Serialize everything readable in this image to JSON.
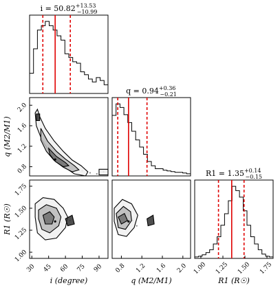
{
  "chart_data": {
    "type": "corner",
    "parameters": [
      {
        "key": "i",
        "title": {
          "lhs": "i = 50.82",
          "sup": "+13.53",
          "sub": "−10.99"
        },
        "median": 50.82,
        "lower": 39.83,
        "upper": 64.35,
        "range": [
          28,
          98
        ],
        "ticks": [
          30,
          45,
          60,
          75,
          90
        ],
        "tick_labels": [
          "30",
          "45",
          "60",
          "75",
          "90"
        ],
        "axis_label": "i (degree)",
        "histogram": [
          0.28,
          0.62,
          0.88,
          0.94,
          1.0,
          0.94,
          0.88,
          0.8,
          0.74,
          0.55,
          0.5,
          0.44,
          0.42,
          0.3,
          0.26,
          0.2,
          0.16,
          0.22,
          0.18,
          0.12
        ]
      },
      {
        "key": "q",
        "title": {
          "lhs": "q = 0.94",
          "sup": "+0.36",
          "sub": "−0.21"
        },
        "median": 0.94,
        "lower": 0.73,
        "upper": 1.3,
        "range": [
          0.62,
          2.15
        ],
        "ticks": [
          0.8,
          1.2,
          1.6,
          2.0
        ],
        "tick_labels": [
          "0.8",
          "1.2",
          "1.6",
          "2.0"
        ],
        "axis_label": "q (M2/M1)",
        "histogram": [
          0.84,
          1.0,
          0.95,
          0.85,
          0.74,
          0.62,
          0.5,
          0.4,
          0.3,
          0.2,
          0.14,
          0.1,
          0.1,
          0.08,
          0.07,
          0.06,
          0.05,
          0.05,
          0.04,
          0.03
        ]
      },
      {
        "key": "R1",
        "title": {
          "lhs": "R1 = 1.35",
          "sup": "+0.14",
          "sub": "−0.15"
        },
        "median": 1.35,
        "lower": 1.2,
        "upper": 1.49,
        "range": [
          0.93,
          1.82
        ],
        "ticks": [
          1.0,
          1.25,
          1.5,
          1.75
        ],
        "tick_labels": [
          "1.00",
          "1.25",
          "1.50",
          "1.75"
        ],
        "axis_label": "R1 (R☉)",
        "histogram": [
          0.02,
          0.03,
          0.05,
          0.08,
          0.12,
          0.2,
          0.3,
          0.46,
          0.62,
          0.8,
          1.0,
          0.94,
          0.85,
          0.66,
          0.46,
          0.3,
          0.2,
          0.12,
          0.06,
          0.03,
          0.02
        ]
      }
    ],
    "pairs": [
      {
        "x": "i",
        "y": "q",
        "contours": [
          [
            [
              35,
              1.92
            ],
            [
              37,
              1.78
            ],
            [
              42,
              1.55
            ],
            [
              50,
              1.3
            ],
            [
              58,
              1.1
            ],
            [
              66,
              0.93
            ],
            [
              74,
              0.82
            ],
            [
              80,
              0.7
            ],
            [
              78,
              0.62
            ],
            [
              68,
              0.66
            ],
            [
              60,
              0.78
            ],
            [
              52,
              0.93
            ],
            [
              45,
              1.12
            ],
            [
              39,
              1.32
            ],
            [
              34,
              1.6
            ],
            [
              33,
              1.85
            ]
          ],
          [
            [
              38,
              1.55
            ],
            [
              44,
              1.3
            ],
            [
              52,
              1.1
            ],
            [
              60,
              0.95
            ],
            [
              68,
              0.82
            ],
            [
              72,
              0.74
            ],
            [
              66,
              0.7
            ],
            [
              58,
              0.79
            ],
            [
              50,
              0.92
            ],
            [
              43,
              1.1
            ],
            [
              38,
              1.32
            ]
          ],
          [
            [
              45,
              1.16
            ],
            [
              52,
              1.0
            ],
            [
              60,
              0.88
            ],
            [
              63,
              0.82
            ],
            [
              58,
              0.8
            ],
            [
              51,
              0.9
            ],
            [
              46,
              1.04
            ]
          ],
          [
            [
              34,
              1.83
            ],
            [
              37,
              1.83
            ],
            [
              37,
              1.7
            ],
            [
              34,
              1.7
            ]
          ],
          [
            [
              90,
              0.75
            ],
            [
              98,
              0.75
            ],
            [
              98,
              0.64
            ],
            [
              90,
              0.64
            ]
          ]
        ],
        "points": [
          [
            37,
            1.75
          ],
          [
            40,
            1.5
          ],
          [
            43,
            1.35
          ],
          [
            47,
            1.2
          ],
          [
            50,
            1.1
          ],
          [
            53,
            1.02
          ],
          [
            56,
            0.96
          ],
          [
            59,
            0.9
          ],
          [
            62,
            0.86
          ],
          [
            66,
            0.8
          ],
          [
            70,
            0.75
          ],
          [
            75,
            0.72
          ],
          [
            82,
            0.68
          ],
          [
            88,
            0.66
          ],
          [
            94,
            0.7
          ]
        ]
      },
      {
        "x": "i",
        "y": "R1",
        "contours": [
          [
            [
              33,
              1.55
            ],
            [
              40,
              1.62
            ],
            [
              50,
              1.6
            ],
            [
              58,
              1.5
            ],
            [
              62,
              1.4
            ],
            [
              60,
              1.28
            ],
            [
              52,
              1.16
            ],
            [
              42,
              1.14
            ],
            [
              35,
              1.22
            ],
            [
              33,
              1.4
            ]
          ],
          [
            [
              36,
              1.48
            ],
            [
              43,
              1.54
            ],
            [
              52,
              1.5
            ],
            [
              56,
              1.4
            ],
            [
              54,
              1.3
            ],
            [
              46,
              1.22
            ],
            [
              39,
              1.26
            ],
            [
              36,
              1.38
            ]
          ],
          [
            [
              40,
              1.42
            ],
            [
              46,
              1.46
            ],
            [
              50,
              1.4
            ],
            [
              48,
              1.32
            ],
            [
              42,
              1.32
            ]
          ],
          [
            [
              60,
              1.38
            ],
            [
              66,
              1.42
            ],
            [
              68,
              1.32
            ],
            [
              62,
              1.3
            ]
          ]
        ],
        "points": [
          [
            44,
            1.38
          ],
          [
            48,
            1.36
          ],
          [
            52,
            1.42
          ],
          [
            38,
            1.36
          ],
          [
            56,
            1.34
          ],
          [
            64,
            1.36
          ],
          [
            46,
            1.28
          ],
          [
            50,
            1.5
          ]
        ]
      },
      {
        "x": "q",
        "y": "R1",
        "contours": [
          [
            [
              0.66,
              1.5
            ],
            [
              0.82,
              1.6
            ],
            [
              1.0,
              1.55
            ],
            [
              1.12,
              1.42
            ],
            [
              1.05,
              1.28
            ],
            [
              0.9,
              1.18
            ],
            [
              0.74,
              1.2
            ],
            [
              0.66,
              1.35
            ]
          ],
          [
            [
              0.7,
              1.44
            ],
            [
              0.84,
              1.52
            ],
            [
              0.98,
              1.46
            ],
            [
              1.0,
              1.36
            ],
            [
              0.88,
              1.26
            ],
            [
              0.74,
              1.28
            ]
          ],
          [
            [
              0.74,
              1.4
            ],
            [
              0.86,
              1.44
            ],
            [
              0.92,
              1.36
            ],
            [
              0.8,
              1.32
            ]
          ],
          [
            [
              1.3,
              1.38
            ],
            [
              1.42,
              1.42
            ],
            [
              1.44,
              1.32
            ],
            [
              1.32,
              1.3
            ]
          ]
        ],
        "points": [
          [
            0.8,
            1.36
          ],
          [
            0.86,
            1.4
          ],
          [
            0.95,
            1.42
          ],
          [
            0.78,
            1.3
          ],
          [
            1.02,
            1.36
          ],
          [
            1.1,
            1.3
          ],
          [
            0.9,
            1.5
          ]
        ]
      }
    ]
  }
}
